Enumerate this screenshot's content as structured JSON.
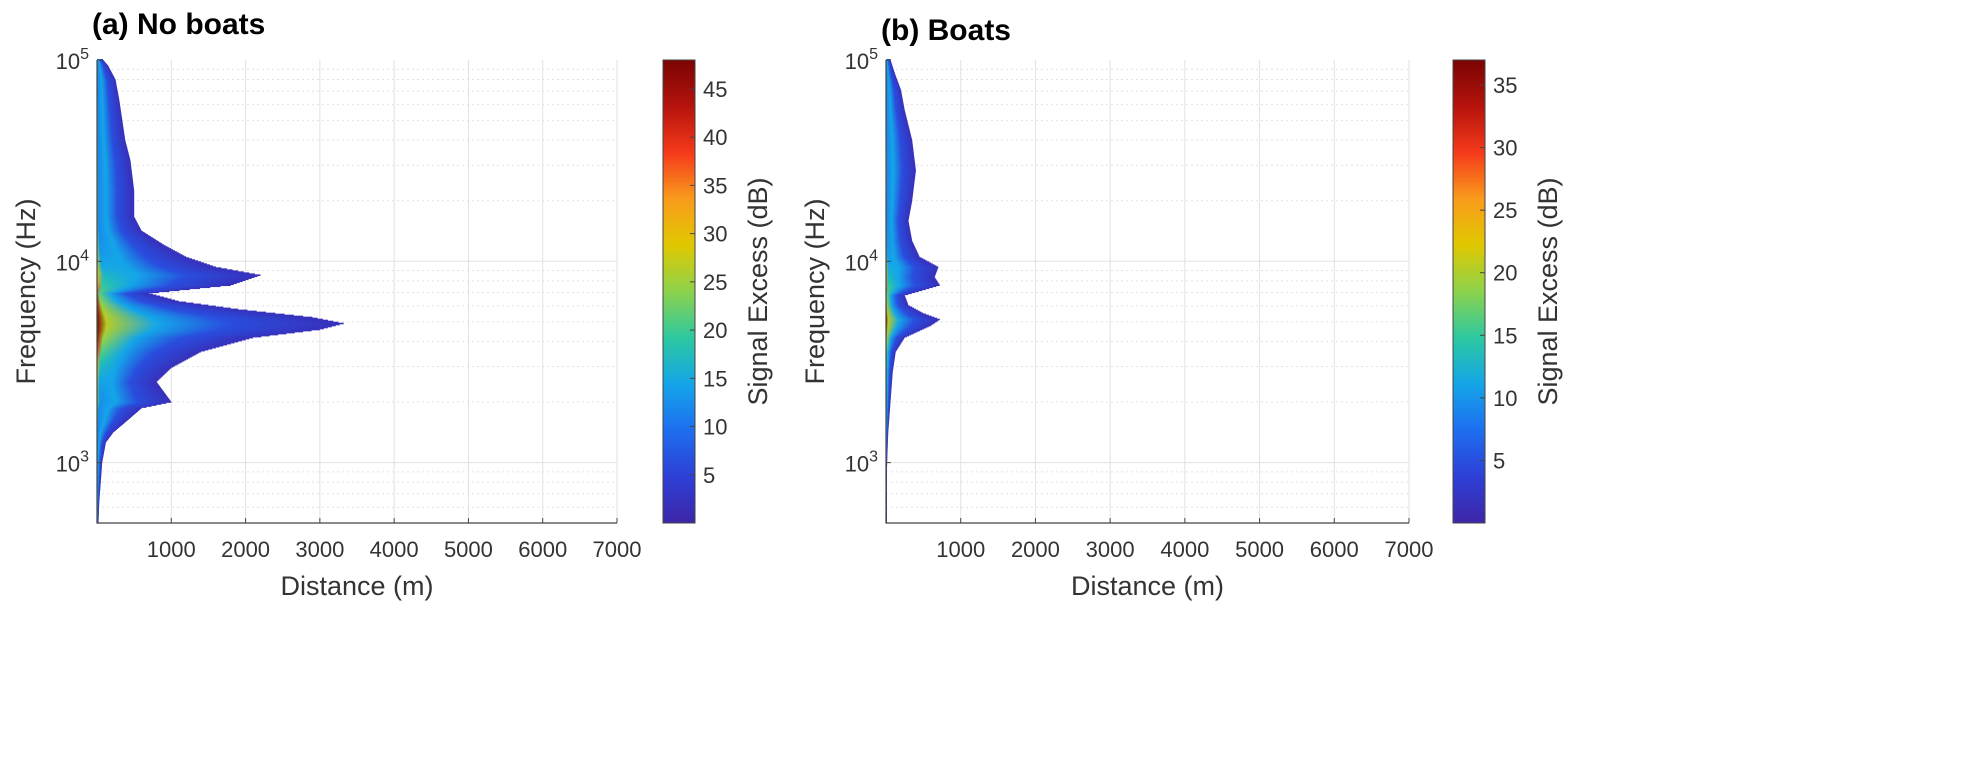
{
  "figure_panels": [
    "(a) No boats",
    "(b) Boats"
  ],
  "chart_data": [
    {
      "type": "heatmap",
      "title": "(a) No boats",
      "xlabel": "Distance (m)",
      "ylabel": "Frequency (Hz)",
      "colorbar_label": "Signal Excess (dB)",
      "xlim": [
        0,
        7000
      ],
      "ylim_log10": [
        2.7,
        5
      ],
      "x_ticks": [
        1000,
        2000,
        3000,
        4000,
        5000,
        6000,
        7000
      ],
      "x_tick_labels": [
        "1000",
        "2000",
        "3000",
        "4000",
        "5000",
        "6000",
        "7000"
      ],
      "y_ticks_log10": [
        3,
        4,
        5
      ],
      "y_tick_bases": [
        "10",
        "10",
        "10"
      ],
      "y_tick_exps": [
        "3",
        "4",
        "5"
      ],
      "colorbar_range": [
        0,
        48
      ],
      "colorbar_ticks": [
        5,
        10,
        15,
        20,
        25,
        30,
        35,
        40,
        45
      ],
      "colorbar_tick_labels": [
        "5",
        "10",
        "15",
        "20",
        "25",
        "30",
        "35",
        "40",
        "45"
      ],
      "max_signal_excess_db": 48,
      "peak_frequency_log10": 3.7,
      "detection_range_m": [
        {
          "log10_freq": 2.7,
          "range_m": 20
        },
        {
          "log10_freq": 2.8,
          "range_m": 30
        },
        {
          "log10_freq": 2.9,
          "range_m": 50
        },
        {
          "log10_freq": 3.0,
          "range_m": 70
        },
        {
          "log10_freq": 3.1,
          "range_m": 120
        },
        {
          "log10_freq": 3.15,
          "range_m": 220
        },
        {
          "log10_freq": 3.2,
          "range_m": 380
        },
        {
          "log10_freq": 3.27,
          "range_m": 600
        },
        {
          "log10_freq": 3.3,
          "range_m": 1000
        },
        {
          "log10_freq": 3.4,
          "range_m": 800
        },
        {
          "log10_freq": 3.47,
          "range_m": 1000
        },
        {
          "log10_freq": 3.55,
          "range_m": 1400
        },
        {
          "log10_freq": 3.62,
          "range_m": 2100
        },
        {
          "log10_freq": 3.66,
          "range_m": 3000
        },
        {
          "log10_freq": 3.69,
          "range_m": 3320
        },
        {
          "log10_freq": 3.72,
          "range_m": 2900
        },
        {
          "log10_freq": 3.76,
          "range_m": 1900
        },
        {
          "log10_freq": 3.8,
          "range_m": 1100
        },
        {
          "log10_freq": 3.84,
          "range_m": 700
        },
        {
          "log10_freq": 3.88,
          "range_m": 1800
        },
        {
          "log10_freq": 3.93,
          "range_m": 2200
        },
        {
          "log10_freq": 3.97,
          "range_m": 1600
        },
        {
          "log10_freq": 4.02,
          "range_m": 1200
        },
        {
          "log10_freq": 4.08,
          "range_m": 900
        },
        {
          "log10_freq": 4.15,
          "range_m": 600
        },
        {
          "log10_freq": 4.22,
          "range_m": 500
        },
        {
          "log10_freq": 4.35,
          "range_m": 500
        },
        {
          "log10_freq": 4.5,
          "range_m": 450
        },
        {
          "log10_freq": 4.6,
          "range_m": 380
        },
        {
          "log10_freq": 4.7,
          "range_m": 340
        },
        {
          "log10_freq": 4.8,
          "range_m": 300
        },
        {
          "log10_freq": 4.9,
          "range_m": 250
        },
        {
          "log10_freq": 4.97,
          "range_m": 150
        },
        {
          "log10_freq": 5.0,
          "range_m": 80
        }
      ]
    },
    {
      "type": "heatmap",
      "title": "(b) Boats",
      "xlabel": "Distance (m)",
      "ylabel": "Frequency (Hz)",
      "colorbar_label": "Signal Excess (dB)",
      "xlim": [
        0,
        7000
      ],
      "ylim_log10": [
        2.7,
        5
      ],
      "x_ticks": [
        1000,
        2000,
        3000,
        4000,
        5000,
        6000,
        7000
      ],
      "x_tick_labels": [
        "1000",
        "2000",
        "3000",
        "4000",
        "5000",
        "6000",
        "7000"
      ],
      "y_ticks_log10": [
        3,
        4,
        5
      ],
      "y_tick_bases": [
        "10",
        "10",
        "10"
      ],
      "y_tick_exps": [
        "3",
        "4",
        "5"
      ],
      "colorbar_range": [
        0,
        37
      ],
      "colorbar_ticks": [
        5,
        10,
        15,
        20,
        25,
        30,
        35
      ],
      "colorbar_tick_labels": [
        "5",
        "10",
        "15",
        "20",
        "25",
        "30",
        "35"
      ],
      "max_signal_excess_db": 37,
      "peak_frequency_log10": 3.7,
      "detection_range_m": [
        {
          "log10_freq": 2.7,
          "range_m": 5
        },
        {
          "log10_freq": 2.9,
          "range_m": 10
        },
        {
          "log10_freq": 3.0,
          "range_m": 15
        },
        {
          "log10_freq": 3.15,
          "range_m": 30
        },
        {
          "log10_freq": 3.3,
          "range_m": 60
        },
        {
          "log10_freq": 3.45,
          "range_m": 90
        },
        {
          "log10_freq": 3.55,
          "range_m": 130
        },
        {
          "log10_freq": 3.62,
          "range_m": 250
        },
        {
          "log10_freq": 3.68,
          "range_m": 600
        },
        {
          "log10_freq": 3.71,
          "range_m": 720
        },
        {
          "log10_freq": 3.74,
          "range_m": 500
        },
        {
          "log10_freq": 3.78,
          "range_m": 300
        },
        {
          "log10_freq": 3.83,
          "range_m": 250
        },
        {
          "log10_freq": 3.88,
          "range_m": 720
        },
        {
          "log10_freq": 3.92,
          "range_m": 650
        },
        {
          "log10_freq": 3.97,
          "range_m": 700
        },
        {
          "log10_freq": 4.02,
          "range_m": 450
        },
        {
          "log10_freq": 4.1,
          "range_m": 350
        },
        {
          "log10_freq": 4.2,
          "range_m": 300
        },
        {
          "log10_freq": 4.3,
          "range_m": 350
        },
        {
          "log10_freq": 4.45,
          "range_m": 400
        },
        {
          "log10_freq": 4.6,
          "range_m": 350
        },
        {
          "log10_freq": 4.75,
          "range_m": 250
        },
        {
          "log10_freq": 4.85,
          "range_m": 200
        },
        {
          "log10_freq": 4.93,
          "range_m": 120
        },
        {
          "log10_freq": 5.0,
          "range_m": 60
        }
      ]
    }
  ],
  "colormap": [
    "#3e26a8",
    "#2d3fd6",
    "#1e6ef0",
    "#14a5e8",
    "#2dc8a0",
    "#8cd24c",
    "#e0c800",
    "#f99b1c",
    "#f53a1a",
    "#b5130c",
    "#7a0403"
  ],
  "background_color": "#ffffff",
  "empty_color": "#ffffff"
}
